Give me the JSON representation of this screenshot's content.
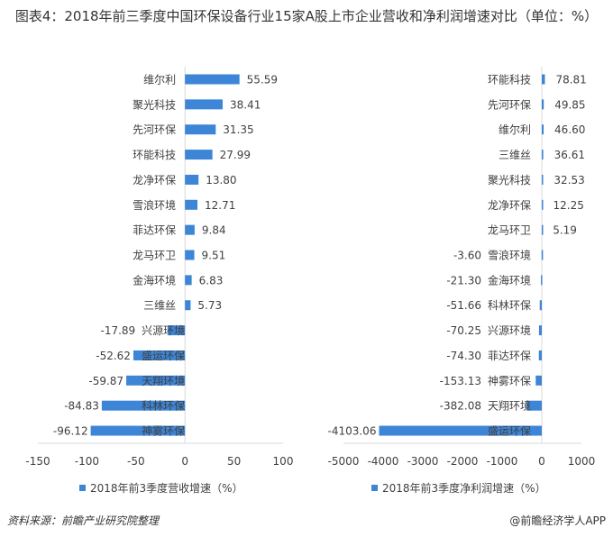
{
  "title": "图表4：2018年前三季度中国环保设备行业15家A股上市企业营收和净利润增速对比（单位：%）",
  "source": "资料来源：前瞻产业研究院整理",
  "brand": "@前瞻经济学人APP",
  "colors": {
    "bar": "#3d85d6",
    "axis": "#d9d9d9",
    "text": "#404040"
  },
  "chart_data": [
    {
      "type": "bar",
      "orientation": "horizontal",
      "legend": "2018年前3季度营收增速（%）",
      "legend_position": "bottom",
      "grid": false,
      "categories": [
        "维尔利",
        "聚光科技",
        "先河环保",
        "环能科技",
        "龙净环保",
        "雪浪环境",
        "菲达环保",
        "龙马环卫",
        "金海环境",
        "三维丝",
        "兴源环境",
        "盛运环保",
        "天翔环境",
        "科林环保",
        "神雾环保"
      ],
      "values": [
        55.59,
        38.41,
        31.35,
        27.99,
        13.8,
        12.71,
        9.84,
        9.51,
        6.83,
        5.73,
        -17.89,
        -52.62,
        -59.87,
        -84.83,
        -96.12
      ],
      "xlim": [
        -150,
        100
      ],
      "ticks": [
        -150,
        -100,
        -50,
        0,
        50,
        100
      ]
    },
    {
      "type": "bar",
      "orientation": "horizontal",
      "legend": "2018年前3季度净利润增速（%）",
      "legend_position": "bottom",
      "grid": false,
      "categories": [
        "环能科技",
        "先河环保",
        "维尔利",
        "三维丝",
        "聚光科技",
        "龙净环保",
        "龙马环卫",
        "雪浪环境",
        "金海环境",
        "科林环保",
        "兴源环境",
        "菲达环保",
        "神雾环保",
        "天翔环境",
        "盛运环保"
      ],
      "values": [
        78.81,
        49.85,
        46.6,
        36.61,
        32.53,
        12.25,
        5.19,
        -3.6,
        -21.3,
        -51.66,
        -70.25,
        -74.3,
        -153.13,
        -382.08,
        -4103.06
      ],
      "xlim": [
        -5000,
        1000
      ],
      "ticks": [
        -5000,
        -4000,
        -3000,
        -2000,
        -1000,
        0,
        1000
      ]
    }
  ]
}
